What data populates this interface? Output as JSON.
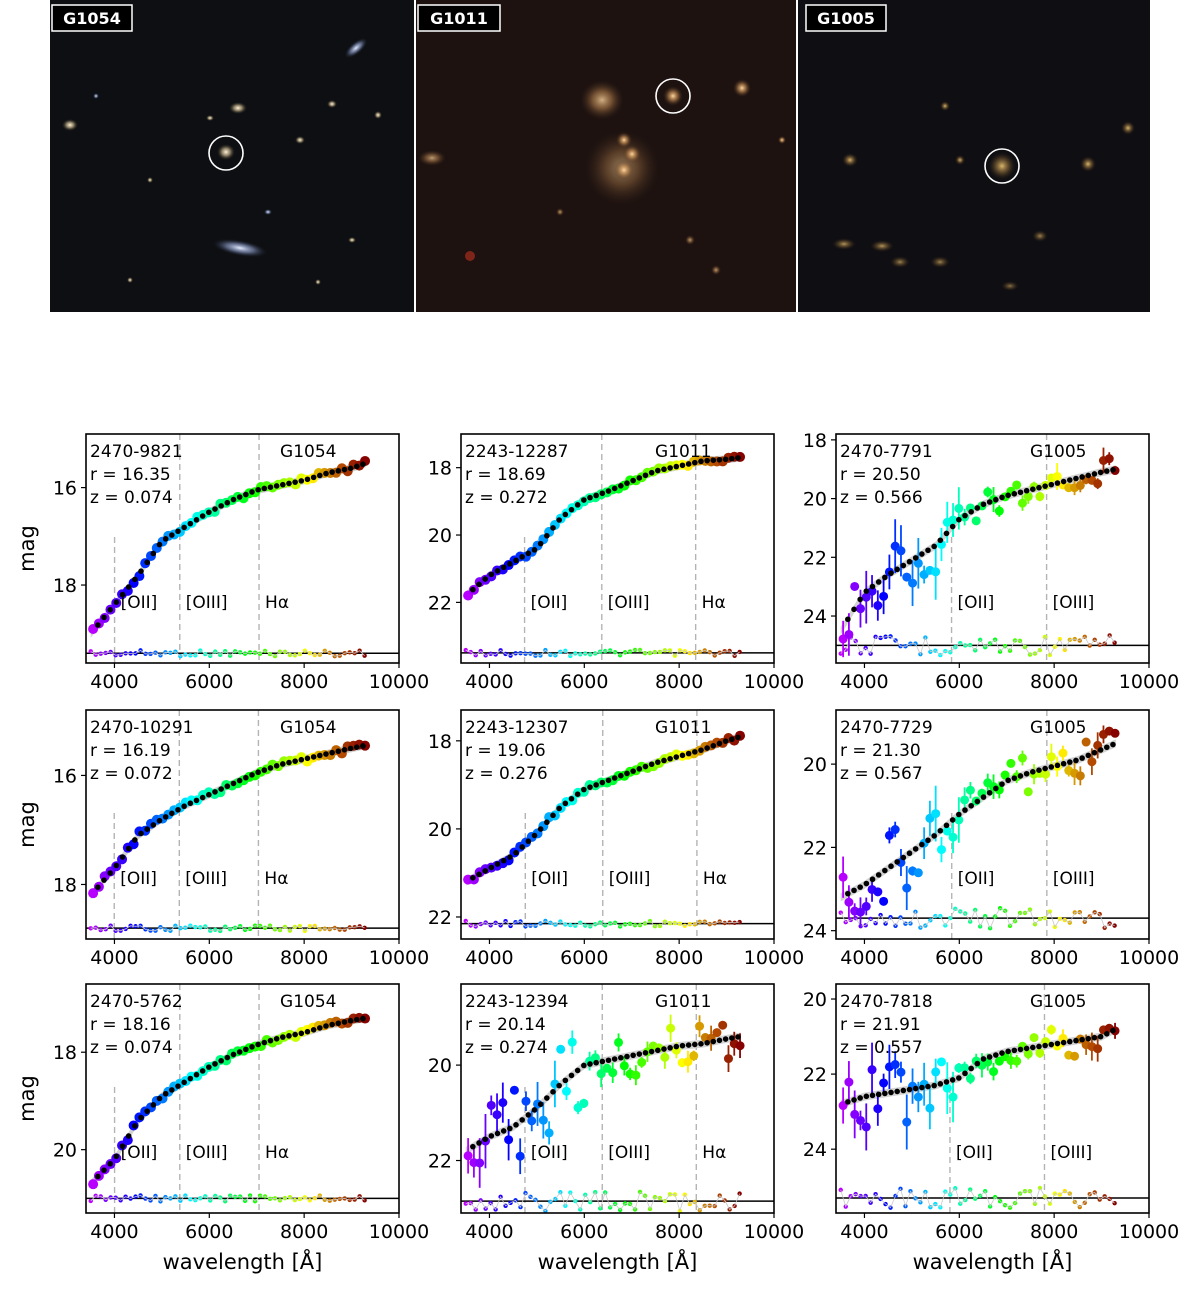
{
  "images": [
    {
      "label": "G1054",
      "sky": "#0d0f12"
    },
    {
      "label": "G1011",
      "sky": "#1d1210"
    },
    {
      "label": "G1005",
      "sky": "#0f0e12"
    }
  ],
  "shared": {
    "xlabel": "wavelength [Å]",
    "ylabel": "mag",
    "xticks": [
      4000,
      6000,
      8000,
      10000
    ],
    "xlim": [
      3400,
      10000
    ],
    "line_labels": [
      "[OII]",
      "[OIII]",
      "Hα"
    ]
  },
  "chart_data": [
    {
      "type": "scatter",
      "id": "2470-9821",
      "group": "G1054",
      "r_text": "r = 16.35",
      "z_text": "z = 0.074",
      "z": 0.074,
      "ylim": [
        19.6,
        14.9
      ],
      "yticks": [
        16,
        18
      ],
      "residual_level": 19.4,
      "x": [
        3500,
        4000,
        4500,
        5000,
        5500,
        6000,
        6500,
        7000,
        7500,
        8000,
        8500,
        9000,
        9300
      ],
      "y": [
        19.0,
        18.4,
        17.8,
        17.1,
        16.8,
        16.5,
        16.25,
        16.05,
        15.95,
        15.85,
        15.7,
        15.6,
        15.5
      ]
    },
    {
      "type": "scatter",
      "id": "2243-12287",
      "group": "G1011",
      "r_text": "r = 18.69",
      "z_text": "z = 0.272",
      "z": 0.272,
      "ylim": [
        23.8,
        17.0
      ],
      "yticks": [
        18,
        20,
        22
      ],
      "residual_level": 23.5,
      "x": [
        3500,
        4000,
        4500,
        5000,
        5500,
        6000,
        6500,
        7000,
        7500,
        8000,
        8500,
        9000,
        9300
      ],
      "y": [
        21.8,
        21.2,
        20.8,
        20.4,
        19.5,
        18.95,
        18.7,
        18.4,
        18.1,
        17.95,
        17.8,
        17.75,
        17.7
      ]
    },
    {
      "type": "scatter",
      "id": "2470-7791",
      "group": "G1005",
      "r_text": "r = 20.50",
      "z_text": "z = 0.566",
      "z": 0.566,
      "ylim": [
        25.6,
        17.8
      ],
      "yticks": [
        18,
        20,
        22,
        24
      ],
      "residual_level": 25.0,
      "x": [
        3500,
        4000,
        4500,
        5000,
        5500,
        6000,
        6500,
        7000,
        7500,
        8000,
        8500,
        9000,
        9300
      ],
      "y": [
        24.5,
        23.2,
        22.6,
        22.1,
        21.6,
        20.7,
        20.2,
        19.9,
        19.7,
        19.5,
        19.3,
        19.1,
        19.0
      ]
    },
    {
      "type": "scatter",
      "id": "2470-10291",
      "group": "G1054",
      "r_text": "r = 16.19",
      "z_text": "z = 0.072",
      "z": 0.072,
      "ylim": [
        19.0,
        14.8
      ],
      "yticks": [
        16,
        18
      ],
      "residual_level": 18.8,
      "x": [
        3500,
        4000,
        4500,
        5000,
        5500,
        6000,
        6500,
        7000,
        7500,
        8000,
        8500,
        9000,
        9300
      ],
      "y": [
        18.2,
        17.7,
        17.1,
        16.8,
        16.55,
        16.35,
        16.15,
        15.95,
        15.8,
        15.7,
        15.6,
        15.5,
        15.45
      ]
    },
    {
      "type": "scatter",
      "id": "2243-12307",
      "group": "G1011",
      "r_text": "r = 19.06",
      "z_text": "z = 0.276",
      "z": 0.276,
      "ylim": [
        22.5,
        17.3
      ],
      "yticks": [
        18,
        20,
        22
      ],
      "residual_level": 22.15,
      "x": [
        3500,
        4000,
        4500,
        5000,
        5500,
        6000,
        6500,
        7000,
        7500,
        8000,
        8500,
        9000,
        9300
      ],
      "y": [
        21.2,
        20.9,
        20.6,
        20.1,
        19.5,
        19.1,
        18.9,
        18.7,
        18.5,
        18.35,
        18.2,
        18.0,
        17.9
      ]
    },
    {
      "type": "scatter",
      "id": "2470-7729",
      "group": "G1005",
      "r_text": "r = 21.30",
      "z_text": "z = 0.567",
      "z": 0.567,
      "ylim": [
        24.2,
        18.7
      ],
      "yticks": [
        20,
        22,
        24
      ],
      "residual_level": 23.7,
      "x": [
        3500,
        4000,
        4500,
        5000,
        5500,
        6000,
        6500,
        7000,
        7500,
        8000,
        8500,
        9000,
        9300
      ],
      "y": [
        23.2,
        22.9,
        22.5,
        22.1,
        21.7,
        21.2,
        20.8,
        20.4,
        20.2,
        20.05,
        19.9,
        19.65,
        19.5
      ]
    },
    {
      "type": "scatter",
      "id": "2470-5762",
      "group": "G1054",
      "r_text": "r = 18.16",
      "z_text": "z = 0.074",
      "z": 0.074,
      "ylim": [
        21.3,
        16.6
      ],
      "yticks": [
        18,
        20
      ],
      "residual_level": 21.0,
      "x": [
        3500,
        4000,
        4500,
        5000,
        5500,
        6000,
        6500,
        7000,
        7500,
        8000,
        8500,
        9000,
        9300
      ],
      "y": [
        20.7,
        20.2,
        19.4,
        18.9,
        18.6,
        18.3,
        18.05,
        17.85,
        17.7,
        17.6,
        17.45,
        17.35,
        17.3
      ]
    },
    {
      "type": "scatter",
      "id": "2243-12394",
      "group": "G1011",
      "r_text": "r = 20.14",
      "z_text": "z = 0.274",
      "z": 0.274,
      "ylim": [
        23.1,
        18.3
      ],
      "yticks": [
        20,
        22
      ],
      "residual_level": 22.85,
      "x": [
        3500,
        4000,
        4500,
        5000,
        5500,
        6000,
        6500,
        7000,
        7500,
        8000,
        8500,
        9000,
        9300
      ],
      "y": [
        21.8,
        21.5,
        21.3,
        20.9,
        20.4,
        20.0,
        19.9,
        19.8,
        19.7,
        19.6,
        19.55,
        19.45,
        19.4
      ]
    },
    {
      "type": "scatter",
      "id": "2470-7818",
      "group": "G1005",
      "r_text": "r = 21.91",
      "z_text": "z = 0.557",
      "z": 0.557,
      "ylim": [
        25.7,
        19.6
      ],
      "yticks": [
        20,
        22,
        24
      ],
      "residual_level": 25.3,
      "x": [
        3500,
        4000,
        4500,
        5000,
        5500,
        6000,
        6500,
        7000,
        7500,
        8000,
        8500,
        9000,
        9300
      ],
      "y": [
        22.8,
        22.6,
        22.5,
        22.4,
        22.3,
        22.1,
        21.6,
        21.4,
        21.3,
        21.2,
        21.1,
        21.0,
        20.8
      ]
    }
  ]
}
